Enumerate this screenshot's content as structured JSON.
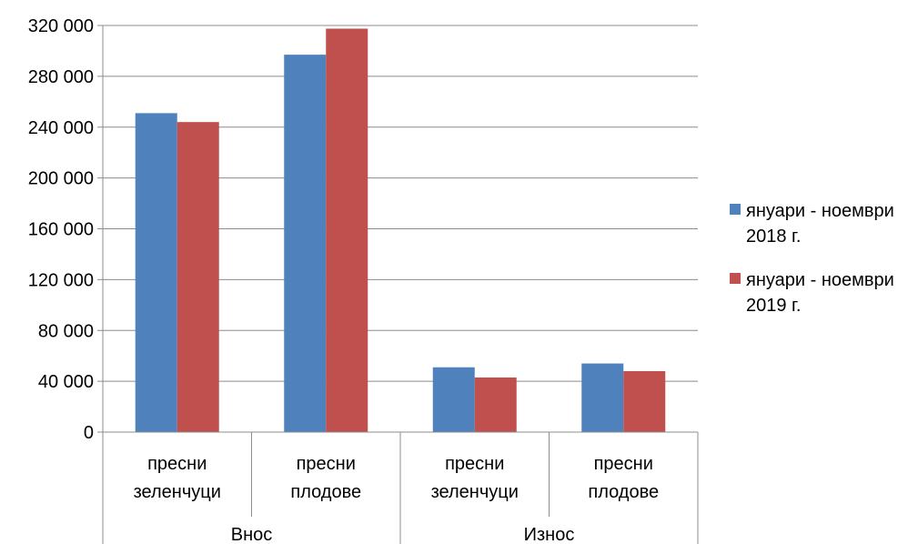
{
  "chart_data": {
    "type": "bar",
    "title": "",
    "xlabel": "",
    "ylabel": "",
    "ylim": [
      0,
      320000
    ],
    "yticks": [
      0,
      40000,
      80000,
      120000,
      160000,
      200000,
      240000,
      280000,
      320000
    ],
    "ytick_labels": [
      "0",
      "40 000",
      "80 000",
      "120 000",
      "160 000",
      "200 000",
      "240 000",
      "280 000",
      "320 000"
    ],
    "grid": true,
    "legend_position": "right",
    "groups": [
      {
        "label": "Внос",
        "categories": [
          [
            "пресни",
            "зеленчуци"
          ],
          [
            "пресни",
            "плодове"
          ]
        ]
      },
      {
        "label": "Износ",
        "categories": [
          [
            "пресни",
            "зеленчуци"
          ],
          [
            "пресни",
            "плодове"
          ]
        ]
      }
    ],
    "series": [
      {
        "name": "януари - ноември 2018 г.",
        "legend_lines": [
          "януари - ноември",
          "2018 г."
        ],
        "color": "#4F81BD",
        "values": [
          251000,
          297000,
          51000,
          54000
        ]
      },
      {
        "name": "януари - ноември 2019 г.",
        "legend_lines": [
          "януари - ноември",
          "2019 г."
        ],
        "color": "#C0504D",
        "values": [
          244000,
          317500,
          43000,
          48000
        ]
      }
    ]
  }
}
